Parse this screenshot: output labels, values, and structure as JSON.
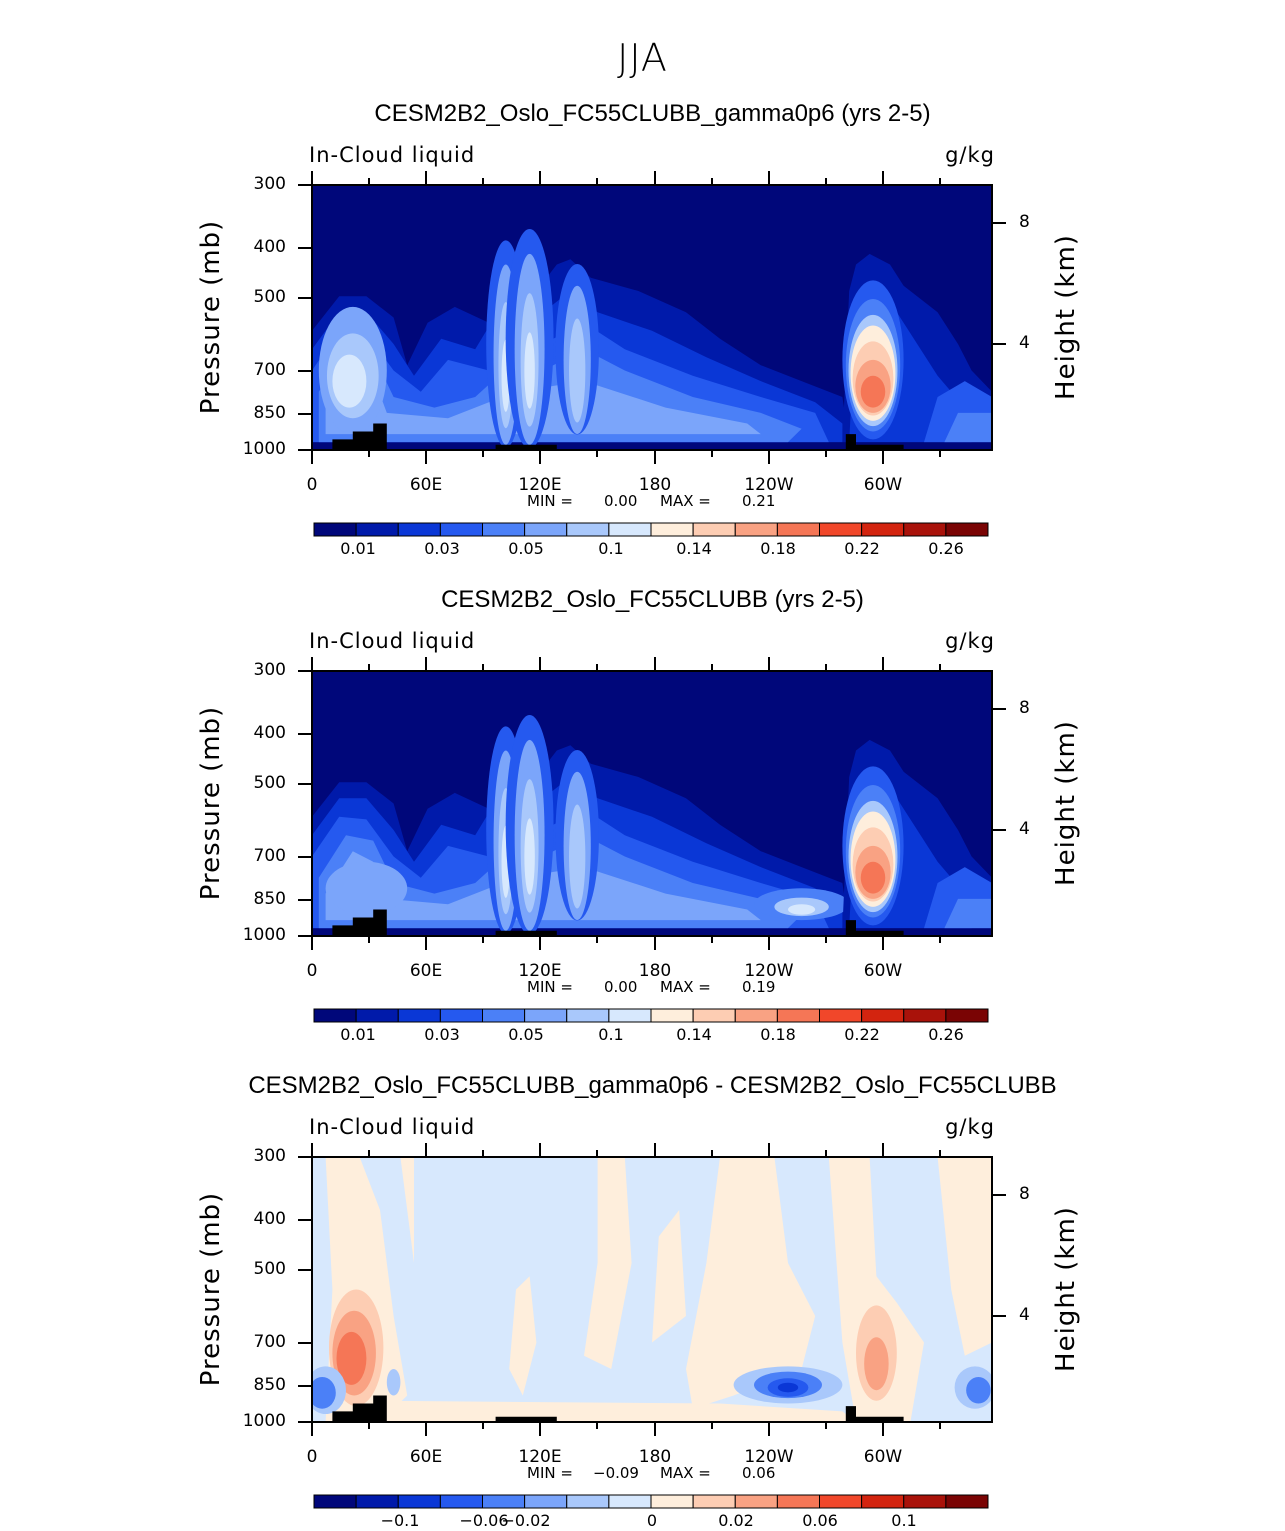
{
  "main_title": "JJA",
  "chart_data": [
    {
      "type": "heatmap",
      "title": "CESM2B2_Oslo_FC55CLUBB_gamma0p6 (yrs 2-5)",
      "left_title": "In-Cloud liquid",
      "units": "g/kg",
      "ylabel": "Pressure (mb)",
      "ylabel_right": "Height (km)",
      "yticks": [
        "300",
        "400",
        "500",
        "700",
        "850",
        "1000"
      ],
      "yticks_right": [
        "8",
        "4"
      ],
      "xticks": [
        "0",
        "60E",
        "120E",
        "180",
        "120W",
        "60W"
      ],
      "min_label": "MIN =",
      "min": "0.00",
      "max_label": "MAX =",
      "max": "0.21",
      "colorbar_labels": [
        "0.01",
        "0.03",
        "0.05",
        "0.1",
        "0.14",
        "0.18",
        "0.22",
        "0.26"
      ],
      "ylim": [
        1000,
        300
      ],
      "xlim": [
        0,
        360
      ]
    },
    {
      "type": "heatmap",
      "title": "CESM2B2_Oslo_FC55CLUBB (yrs 2-5)",
      "left_title": "In-Cloud liquid",
      "units": "g/kg",
      "ylabel": "Pressure (mb)",
      "ylabel_right": "Height (km)",
      "yticks": [
        "300",
        "400",
        "500",
        "700",
        "850",
        "1000"
      ],
      "yticks_right": [
        "8",
        "4"
      ],
      "xticks": [
        "0",
        "60E",
        "120E",
        "180",
        "120W",
        "60W"
      ],
      "min_label": "MIN =",
      "min": "0.00",
      "max_label": "MAX =",
      "max": "0.19",
      "colorbar_labels": [
        "0.01",
        "0.03",
        "0.05",
        "0.1",
        "0.14",
        "0.18",
        "0.22",
        "0.26"
      ],
      "ylim": [
        1000,
        300
      ],
      "xlim": [
        0,
        360
      ]
    },
    {
      "type": "heatmap",
      "title": "CESM2B2_Oslo_FC55CLUBB_gamma0p6 - CESM2B2_Oslo_FC55CLUBB",
      "left_title": "In-Cloud liquid",
      "units": "g/kg",
      "ylabel": "Pressure (mb)",
      "ylabel_right": "Height (km)",
      "yticks": [
        "300",
        "400",
        "500",
        "700",
        "850",
        "1000"
      ],
      "yticks_right": [
        "8",
        "4"
      ],
      "xticks": [
        "0",
        "60E",
        "120E",
        "180",
        "120W",
        "60W"
      ],
      "min_label": "MIN =",
      "min": "−0.09",
      "max_label": "MAX =",
      "max": "0.06",
      "colorbar_labels": [
        "−0.1",
        "−0.06",
        "−0.02",
        "0",
        "0.02",
        "0.06",
        "0.1"
      ],
      "ylim": [
        1000,
        300
      ],
      "xlim": [
        0,
        360
      ]
    }
  ],
  "colors": {
    "levels": [
      "#00077a",
      "#001aaa",
      "#0a37d6",
      "#2559ef",
      "#4b80f7",
      "#7ba5fa",
      "#a9c8fb",
      "#d7e8fd",
      "#feeedc",
      "#fdcdb3",
      "#f9a283",
      "#f57656",
      "#f1472a",
      "#d3240f",
      "#a9120a",
      "#7a0404"
    ],
    "topography": "#000000"
  }
}
